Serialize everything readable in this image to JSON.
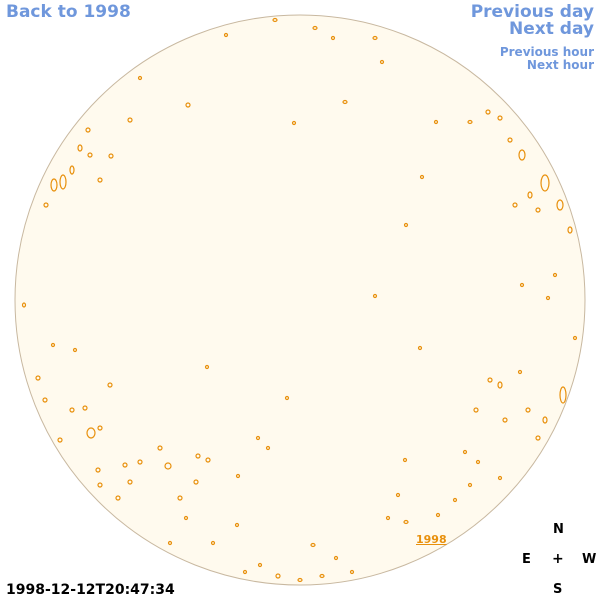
{
  "nav": {
    "back": "Back to 1998",
    "previous_day": "Previous day",
    "next_day": "Next day",
    "previous_hour": "Previous hour",
    "next_hour": "Next hour"
  },
  "timestamp": "1998-12-12T20:47:34",
  "year_link": "1998",
  "compass": {
    "north": "N",
    "east": "E",
    "west": "W",
    "south": "S",
    "center": "+"
  },
  "colors": {
    "disk_fill": "#fffaee",
    "disk_edge": "#c8b8a0",
    "contour": "#e8900c",
    "link": "#6f97dc"
  }
}
